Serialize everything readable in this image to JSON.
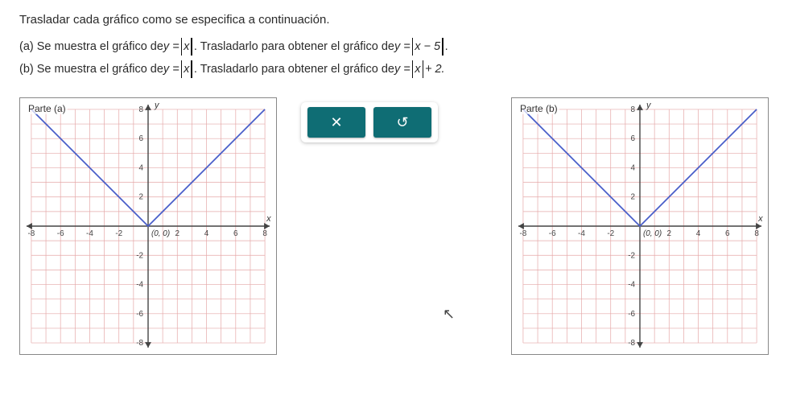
{
  "intro": "Trasladar cada gráfico como se especifica a continuación.",
  "problems": {
    "a": {
      "prefix": "(a) Se muestra el gráfico de ",
      "eq1_lhs": "y = ",
      "eq1_abs": "x",
      "mid": " . Trasladarlo para obtener el gráfico de ",
      "eq2_lhs": "y = ",
      "eq2_abs": "x − 5",
      "suffix": " ."
    },
    "b": {
      "prefix": "(b) Se muestra el gráfico de ",
      "eq1_lhs": "y = ",
      "eq1_abs": "x",
      "mid": " . Trasladarlo para obtener el gráfico de ",
      "eq2_lhs": "y = ",
      "eq2_abs": "x",
      "eq2_tail": " + 2.",
      "suffix": ""
    }
  },
  "graphs": {
    "a": {
      "label": "Parte (a)",
      "origin_label": "(0, 0)"
    },
    "b": {
      "label": "Parte (b)",
      "origin_label": "(0, 0)"
    },
    "style": {
      "xlim": [
        -8,
        8
      ],
      "ylim": [
        -8,
        8
      ],
      "tick_step": 2,
      "grid_color": "#e5a8a8",
      "axis_color": "#444444",
      "plot_color": "#4a5fc9",
      "background_color": "#ffffff",
      "tick_font_size": 10,
      "y_axis_label": "y",
      "x_axis_label": "x",
      "plot": {
        "type": "line",
        "function": "abs",
        "vertex": [
          0,
          0
        ],
        "points": [
          [
            -8,
            8
          ],
          [
            0,
            0
          ],
          [
            8,
            8
          ]
        ]
      }
    }
  },
  "controls": {
    "clear": {
      "glyph": "✕"
    },
    "reset": {
      "glyph": "↺"
    }
  },
  "colors": {
    "button_bg": "#0f6d74",
    "button_fg": "#ffffff",
    "text": "#2a2a2a",
    "panel_bg": "#ffffff"
  }
}
